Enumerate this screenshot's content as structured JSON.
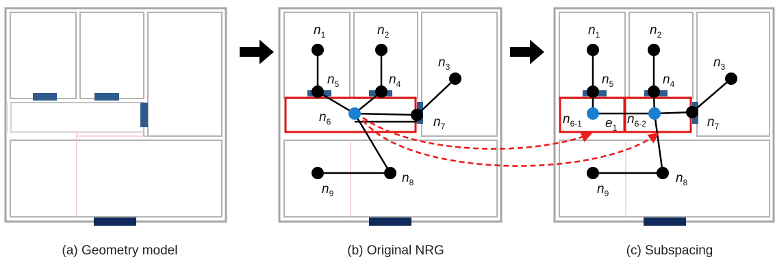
{
  "captions": {
    "a": "(a) Geometry model",
    "b": "(b) Original NRG",
    "c": "(c) Subspacing"
  },
  "nodes": {
    "n1": {
      "base": "n",
      "sub": "1"
    },
    "n2": {
      "base": "n",
      "sub": "2"
    },
    "n3": {
      "base": "n",
      "sub": "3"
    },
    "n4": {
      "base": "n",
      "sub": "4"
    },
    "n5": {
      "base": "n",
      "sub": "5"
    },
    "n6": {
      "base": "n",
      "sub": "6"
    },
    "n7": {
      "base": "n",
      "sub": "7"
    },
    "n8": {
      "base": "n",
      "sub": "8"
    },
    "n9": {
      "base": "n",
      "sub": "9"
    },
    "n6_1": {
      "base": "n",
      "sub": "6-1"
    },
    "n6_2": {
      "base": "n",
      "sub": "6-2"
    },
    "e1": {
      "base": "e",
      "sub": "1"
    }
  },
  "colors": {
    "wall": "#a6a6a6",
    "room_wall": "#b3b3b3",
    "virtual_boundary": "#f2b9b9",
    "door_small": "#2e5b8c",
    "door_main": "#0f2a5a",
    "node": "#000000",
    "highlight_node": "#1a7fd1",
    "selection": "#e01515",
    "mapping_arrow": "#ee1c1c",
    "step_arrow": "#000000"
  },
  "icons": {
    "step": "right-arrow-icon"
  }
}
